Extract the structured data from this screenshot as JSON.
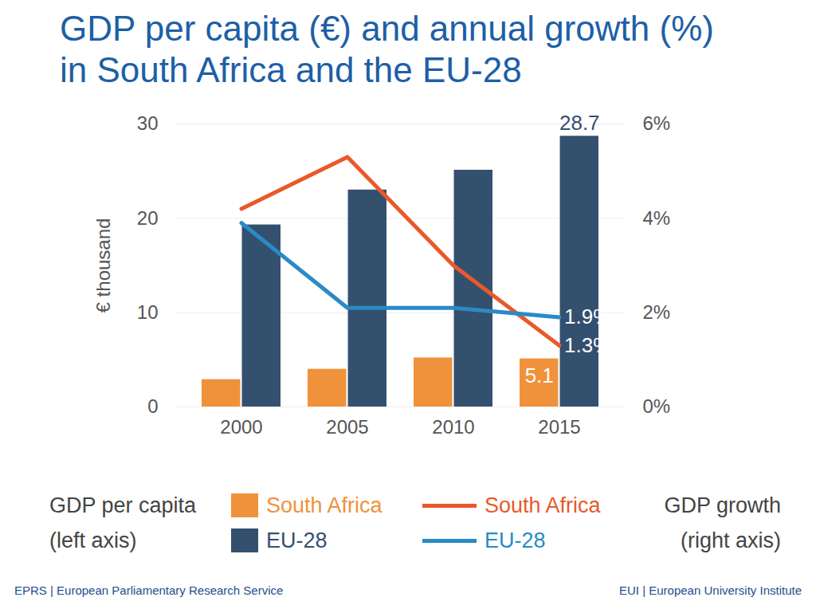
{
  "chart_data": {
    "type": "bar",
    "title": "GDP per capita (€) and annual growth (%)\nin South Africa and the EU-28",
    "categories": [
      "2000",
      "2005",
      "2010",
      "2015"
    ],
    "ylabel": "€ thousand",
    "ylim": [
      0,
      30
    ],
    "yticks": [
      0,
      10,
      20,
      30
    ],
    "y2lim": [
      0,
      6
    ],
    "y2ticks": [
      {
        "value": 0,
        "label": "0%"
      },
      {
        "value": 2,
        "label": "2%"
      },
      {
        "value": 4,
        "label": "4%"
      },
      {
        "value": 6,
        "label": "6%"
      }
    ],
    "grid": true,
    "legend": "bottom",
    "legend_titles": [
      [
        "GDP per capita",
        "(left axis)"
      ],
      [
        "GDP growth",
        "(right axis)"
      ]
    ],
    "series": [
      {
        "name": "South Africa",
        "type": "bar",
        "axis": "y",
        "color": "#f0923b",
        "values": [
          2.9,
          4.0,
          5.2,
          5.1
        ],
        "value_labels": [
          null,
          null,
          null,
          "5.1"
        ]
      },
      {
        "name": "EU-28",
        "type": "bar",
        "axis": "y",
        "color": "#34506f",
        "values": [
          19.3,
          23.0,
          25.1,
          28.7
        ],
        "value_labels": [
          null,
          null,
          null,
          "28.7"
        ]
      },
      {
        "name": "South Africa",
        "type": "line",
        "axis": "y2",
        "color": "#e9592a",
        "values": [
          4.2,
          5.3,
          3.0,
          1.3
        ],
        "value_labels": [
          null,
          null,
          null,
          "1.3%"
        ]
      },
      {
        "name": "EU-28",
        "type": "line",
        "axis": "y2",
        "color": "#2a8ac6",
        "values": [
          3.9,
          2.1,
          2.1,
          1.9
        ],
        "value_labels": [
          null,
          null,
          null,
          "1.9%"
        ]
      }
    ],
    "sources": [
      "EPRS | European Parliamentary Research Service",
      "EUI | European University Institute"
    ]
  }
}
